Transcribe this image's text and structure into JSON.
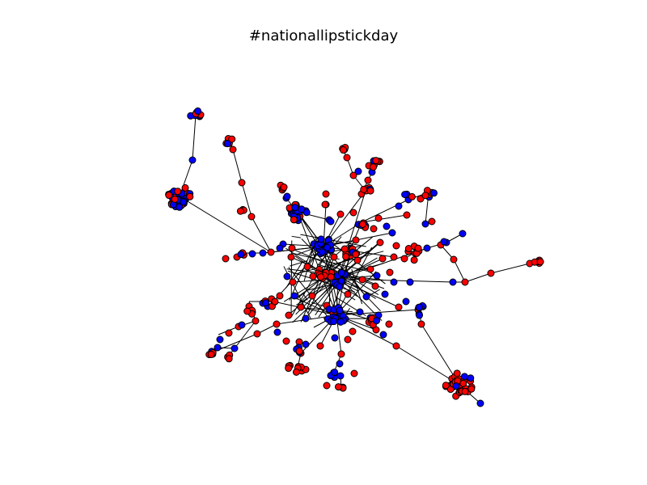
{
  "title": "#nationallipstickday",
  "colors": {
    "blue": "#0000ff",
    "red": "#ff0000",
    "edge": "#000000",
    "background": "#ffffff"
  },
  "legend": null
}
